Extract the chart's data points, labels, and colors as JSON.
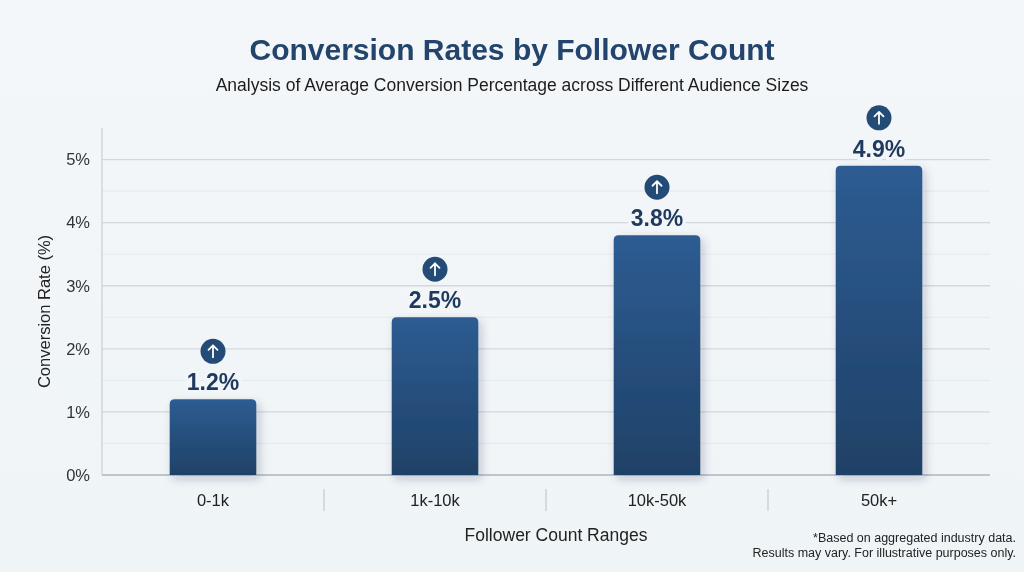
{
  "chart_data": {
    "type": "bar",
    "title": "Conversion Rates by Follower Count",
    "subtitle": "Analysis of Average Conversion Percentage across Different Audience Sizes",
    "xlabel": "Follower Count Ranges",
    "ylabel": "Conversion Rate (%)",
    "categories": [
      "0-1k",
      "1k-10k",
      "10k-50k",
      "50k+"
    ],
    "values": [
      1.2,
      2.5,
      3.8,
      4.9
    ],
    "value_labels": [
      "1.2%",
      "2.5%",
      "3.8%",
      "4.9%"
    ],
    "color": "#27507f",
    "ylim": [
      0,
      5.5
    ],
    "yticks": [
      {
        "value": 0,
        "label": "0%"
      },
      {
        "value": 0.5,
        "label": null
      },
      {
        "value": 1,
        "label": "1%"
      },
      {
        "value": 1.5,
        "label": null
      },
      {
        "value": 2,
        "label": "2%"
      },
      {
        "value": 2.5,
        "label": null
      },
      {
        "value": 3,
        "label": "3%"
      },
      {
        "value": 3.5,
        "label": null
      },
      {
        "value": 4,
        "label": "4%"
      },
      {
        "value": 4.5,
        "label": null
      },
      {
        "value": 5,
        "label": "5%"
      }
    ],
    "grid": "y",
    "annotations": [
      "*Based on aggregated industry data.",
      "Results may vary. For illustrative purposes only."
    ]
  }
}
